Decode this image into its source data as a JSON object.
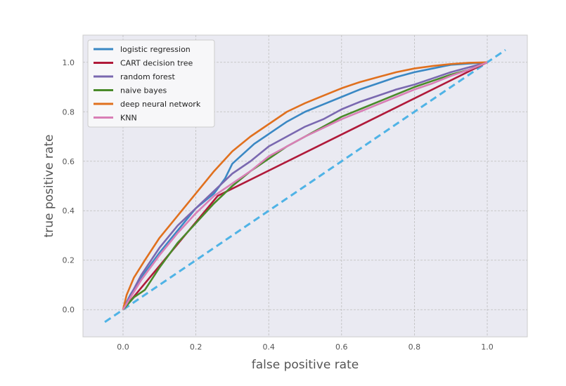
{
  "chart_data": {
    "type": "line",
    "title": "",
    "xlabel": "false positive rate",
    "ylabel": "true positive rate",
    "xlim": [
      -0.11,
      1.11
    ],
    "ylim": [
      -0.11,
      1.11
    ],
    "xticks": [
      "0.0",
      "0.2",
      "0.4",
      "0.6",
      "0.8",
      "1.0"
    ],
    "yticks": [
      "0.0",
      "0.2",
      "0.4",
      "0.6",
      "0.8",
      "1.0"
    ],
    "grid": true,
    "legend": "upper-left",
    "background": "#eaeaf2",
    "series": [
      {
        "name": "logistic regression",
        "color": "#3a88c4",
        "points": [
          [
            0.0,
            0.0
          ],
          [
            0.02,
            0.06
          ],
          [
            0.05,
            0.13
          ],
          [
            0.1,
            0.23
          ],
          [
            0.15,
            0.32
          ],
          [
            0.2,
            0.41
          ],
          [
            0.25,
            0.47
          ],
          [
            0.28,
            0.53
          ],
          [
            0.3,
            0.59
          ],
          [
            0.33,
            0.63
          ],
          [
            0.36,
            0.67
          ],
          [
            0.4,
            0.71
          ],
          [
            0.45,
            0.76
          ],
          [
            0.5,
            0.8
          ],
          [
            0.55,
            0.83
          ],
          [
            0.6,
            0.86
          ],
          [
            0.65,
            0.89
          ],
          [
            0.7,
            0.915
          ],
          [
            0.75,
            0.94
          ],
          [
            0.8,
            0.96
          ],
          [
            0.85,
            0.975
          ],
          [
            0.9,
            0.99
          ],
          [
            0.95,
            0.995
          ],
          [
            1.0,
            1.0
          ]
        ]
      },
      {
        "name": "CART decision tree",
        "color": "#b01a3a",
        "points": [
          [
            0.0,
            0.0
          ],
          [
            0.26,
            0.46
          ],
          [
            1.0,
            1.0
          ]
        ]
      },
      {
        "name": "random forest",
        "color": "#7a68b0",
        "points": [
          [
            0.0,
            0.0
          ],
          [
            0.05,
            0.14
          ],
          [
            0.1,
            0.25
          ],
          [
            0.15,
            0.34
          ],
          [
            0.2,
            0.41
          ],
          [
            0.25,
            0.48
          ],
          [
            0.3,
            0.55
          ],
          [
            0.35,
            0.6
          ],
          [
            0.4,
            0.66
          ],
          [
            0.45,
            0.7
          ],
          [
            0.5,
            0.74
          ],
          [
            0.55,
            0.77
          ],
          [
            0.6,
            0.81
          ],
          [
            0.65,
            0.84
          ],
          [
            0.7,
            0.865
          ],
          [
            0.75,
            0.89
          ],
          [
            0.8,
            0.91
          ],
          [
            0.85,
            0.935
          ],
          [
            0.9,
            0.96
          ],
          [
            0.95,
            0.98
          ],
          [
            1.0,
            1.0
          ]
        ]
      },
      {
        "name": "naive bayes",
        "color": "#4a8a2a",
        "points": [
          [
            0.0,
            0.0
          ],
          [
            0.03,
            0.05
          ],
          [
            0.06,
            0.08
          ],
          [
            0.1,
            0.17
          ],
          [
            0.15,
            0.27
          ],
          [
            0.2,
            0.35
          ],
          [
            0.25,
            0.43
          ],
          [
            0.3,
            0.5
          ],
          [
            0.35,
            0.56
          ],
          [
            0.4,
            0.61
          ],
          [
            0.45,
            0.66
          ],
          [
            0.5,
            0.7
          ],
          [
            0.55,
            0.74
          ],
          [
            0.6,
            0.78
          ],
          [
            0.65,
            0.81
          ],
          [
            0.7,
            0.84
          ],
          [
            0.75,
            0.87
          ],
          [
            0.8,
            0.9
          ],
          [
            0.85,
            0.925
          ],
          [
            0.9,
            0.95
          ],
          [
            0.95,
            0.97
          ],
          [
            1.0,
            1.0
          ]
        ]
      },
      {
        "name": "deep neural network",
        "color": "#e0701e",
        "points": [
          [
            0.0,
            0.0
          ],
          [
            0.01,
            0.06
          ],
          [
            0.03,
            0.13
          ],
          [
            0.06,
            0.2
          ],
          [
            0.1,
            0.29
          ],
          [
            0.15,
            0.38
          ],
          [
            0.2,
            0.47
          ],
          [
            0.25,
            0.56
          ],
          [
            0.3,
            0.64
          ],
          [
            0.35,
            0.7
          ],
          [
            0.4,
            0.75
          ],
          [
            0.45,
            0.8
          ],
          [
            0.5,
            0.835
          ],
          [
            0.55,
            0.865
          ],
          [
            0.6,
            0.895
          ],
          [
            0.65,
            0.92
          ],
          [
            0.7,
            0.94
          ],
          [
            0.75,
            0.96
          ],
          [
            0.8,
            0.975
          ],
          [
            0.85,
            0.985
          ],
          [
            0.9,
            0.993
          ],
          [
            0.95,
            0.998
          ],
          [
            1.0,
            1.0
          ]
        ]
      },
      {
        "name": "KNN",
        "color": "#d97fb6",
        "points": [
          [
            0.0,
            0.0
          ],
          [
            0.05,
            0.12
          ],
          [
            0.1,
            0.22
          ],
          [
            0.15,
            0.31
          ],
          [
            0.2,
            0.39
          ],
          [
            0.25,
            0.46
          ],
          [
            0.3,
            0.51
          ],
          [
            0.35,
            0.56
          ],
          [
            0.4,
            0.62
          ],
          [
            0.45,
            0.66
          ],
          [
            0.5,
            0.7
          ],
          [
            0.55,
            0.735
          ],
          [
            0.6,
            0.77
          ],
          [
            0.65,
            0.8
          ],
          [
            0.7,
            0.83
          ],
          [
            0.75,
            0.86
          ],
          [
            0.8,
            0.89
          ],
          [
            0.85,
            0.915
          ],
          [
            0.9,
            0.945
          ],
          [
            0.95,
            0.97
          ],
          [
            1.0,
            1.0
          ]
        ]
      }
    ],
    "reference_line": {
      "color": "#4fb3e6",
      "style": "dashed",
      "points": [
        [
          -0.05,
          -0.05
        ],
        [
          1.05,
          1.05
        ]
      ]
    }
  }
}
